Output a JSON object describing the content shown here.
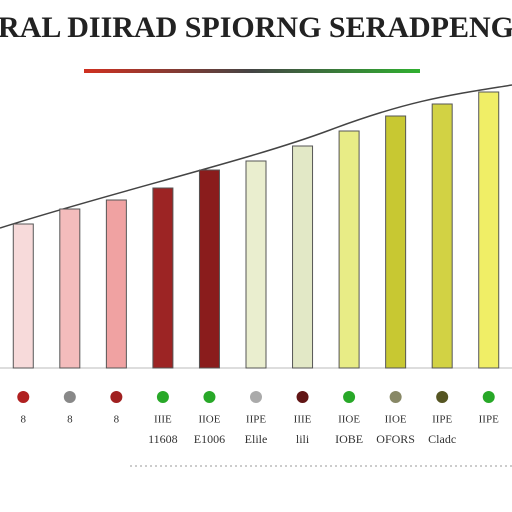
{
  "chart_data": {
    "type": "bar",
    "title": "RAL DIIRAD SPIORNG SERADPENG",
    "categories": [
      "8",
      "8",
      "8",
      "IIIE",
      "IIOE",
      "IIPE",
      "IIIE",
      "IIOE",
      "IIOE",
      "IIPE",
      "IIPE"
    ],
    "sublabels": [
      "",
      "",
      "",
      "11608",
      "E1006",
      "Elile",
      "lili",
      "IOBE",
      "OFORS",
      "Cladc",
      ""
    ],
    "values": [
      48,
      53,
      56,
      60,
      66,
      69,
      74,
      79,
      84,
      88,
      92
    ],
    "colors": [
      "#f7dada",
      "#f4bcbc",
      "#f0a2a2",
      "#9c2424",
      "#8a1c1c",
      "#eaeecf",
      "#e2e8c6",
      "#e8ec86",
      "#c8c832",
      "#d2d244",
      "#f0ee66"
    ],
    "marker_colors": [
      "#b02020",
      "#888888",
      "#a02020",
      "#28a828",
      "#28a828",
      "#aaaaaa",
      "#611515",
      "#28a828",
      "#888866",
      "#555522",
      "#28a828"
    ],
    "ylim": [
      0,
      100
    ]
  }
}
